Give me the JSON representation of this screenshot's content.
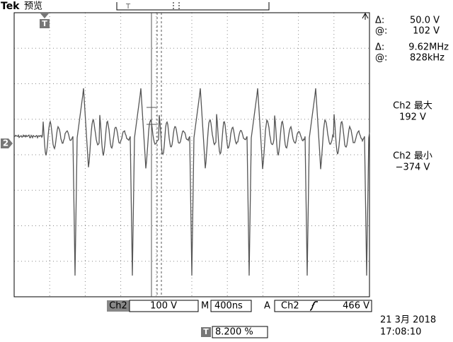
{
  "header": {
    "brand": "Tek",
    "mode": "预览"
  },
  "markers": {
    "window_trigger": "T",
    "trigger_position": "T",
    "ground": "2"
  },
  "cursor_readout": {
    "amplitude": {
      "delta_label": "Δ:",
      "delta": "50.0 V",
      "at_label": "@:",
      "at": "102 V"
    },
    "frequency": {
      "delta_label": "Δ:",
      "delta": "9.62MHz",
      "at_label": "@:",
      "at": "828kHz"
    }
  },
  "measurements": [
    {
      "label": "Ch2 最大",
      "value": "192 V"
    },
    {
      "label": "Ch2 最小",
      "value": "−374 V"
    }
  ],
  "status_bar": {
    "channel": "Ch2",
    "scale": "100 V",
    "timebase_label": "M",
    "timebase": "400ns",
    "trigger_label": "A",
    "trigger_source": "Ch2",
    "trigger_level": "466 V",
    "date": "21 3月  2018",
    "time": "17:08:10",
    "trigger_position_label": "T",
    "trigger_position": "8.200 %"
  }
}
